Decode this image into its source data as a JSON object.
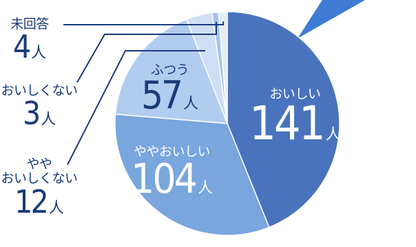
{
  "chart_data": {
    "type": "pie",
    "slices": [
      {
        "label": "おいしい",
        "value": 141,
        "color": "#4a73bd"
      },
      {
        "label": "ややおいしい",
        "value": 104,
        "color": "#78a6dd"
      },
      {
        "label": "ふつう",
        "value": 57,
        "color": "#b0cdf0"
      },
      {
        "label": "ややおいしくない",
        "value": 12,
        "color": "#cedff5"
      },
      {
        "label": "おいしくない",
        "value": 3,
        "color": "#a6c3ec"
      },
      {
        "label": "未回答",
        "value": 4,
        "color": "#e4edf9"
      }
    ],
    "unit": "人",
    "labels": {
      "oishii": {
        "cat": "おいしい",
        "num": "141"
      },
      "yaya": {
        "cat": "ややおいしい",
        "num": "104"
      },
      "futsu": {
        "cat": "ふつう",
        "num": "57"
      },
      "mikaito": {
        "cat": "未回答",
        "num": "4"
      },
      "oishikunai": {
        "cat": "おいしくない",
        "num": "3"
      },
      "yaya_oishikunai": {
        "cat_line1": "やや",
        "cat_line2": "おいしくない",
        "num": "12"
      }
    },
    "accent_color": "#3d7bd4",
    "text_color": "#1a3a7a"
  }
}
